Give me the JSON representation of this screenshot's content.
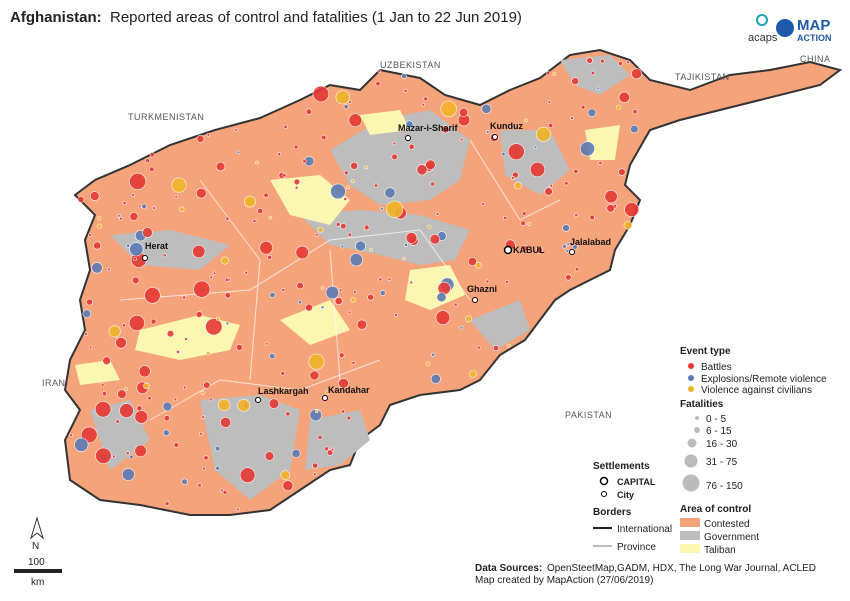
{
  "header": {
    "title_bold": "Afghanistan:",
    "title": "Reported areas of control and fatalities (1 Jan to 22 Jun 2019)",
    "logos": [
      "acaps",
      "MAP",
      "ACTION"
    ]
  },
  "map": {
    "countries": [
      "UZBEKISTAN",
      "TAJIKISTAN",
      "CHINA",
      "TURKMENISTAN",
      "IRAN",
      "PAKISTAN"
    ],
    "cities": [
      "Mazar-i-Sharif",
      "Kunduz",
      "Herat",
      "KABUL",
      "Jalalabad",
      "Ghazni",
      "Lashkargah",
      "Kandahar"
    ]
  },
  "legend": {
    "event_type": {
      "title": "Event type",
      "items": [
        "Battles",
        "Explosions/Remote violence",
        "Violence against civilians"
      ]
    },
    "fatalities": {
      "title": "Fatalities",
      "items": [
        "0 - 5",
        "6 - 15",
        "16 - 30",
        "31 - 75",
        "76 - 150"
      ]
    },
    "settlements": {
      "title": "Settlements",
      "items": [
        "CAPITAL",
        "City"
      ]
    },
    "borders": {
      "title": "Borders",
      "items": [
        "International",
        "Province"
      ]
    },
    "area_of_control": {
      "title": "Area of control",
      "items": [
        "Contested",
        "Government",
        "Taliban"
      ]
    }
  },
  "scale": {
    "north": "N",
    "distance": "100",
    "unit": "km"
  },
  "sources": {
    "label": "Data Sources:",
    "text": "OpenSteetMap,GADM, HDX, The Long War Journal, ACLED",
    "credit": "Map created by MapAction (27/06/2019)"
  }
}
